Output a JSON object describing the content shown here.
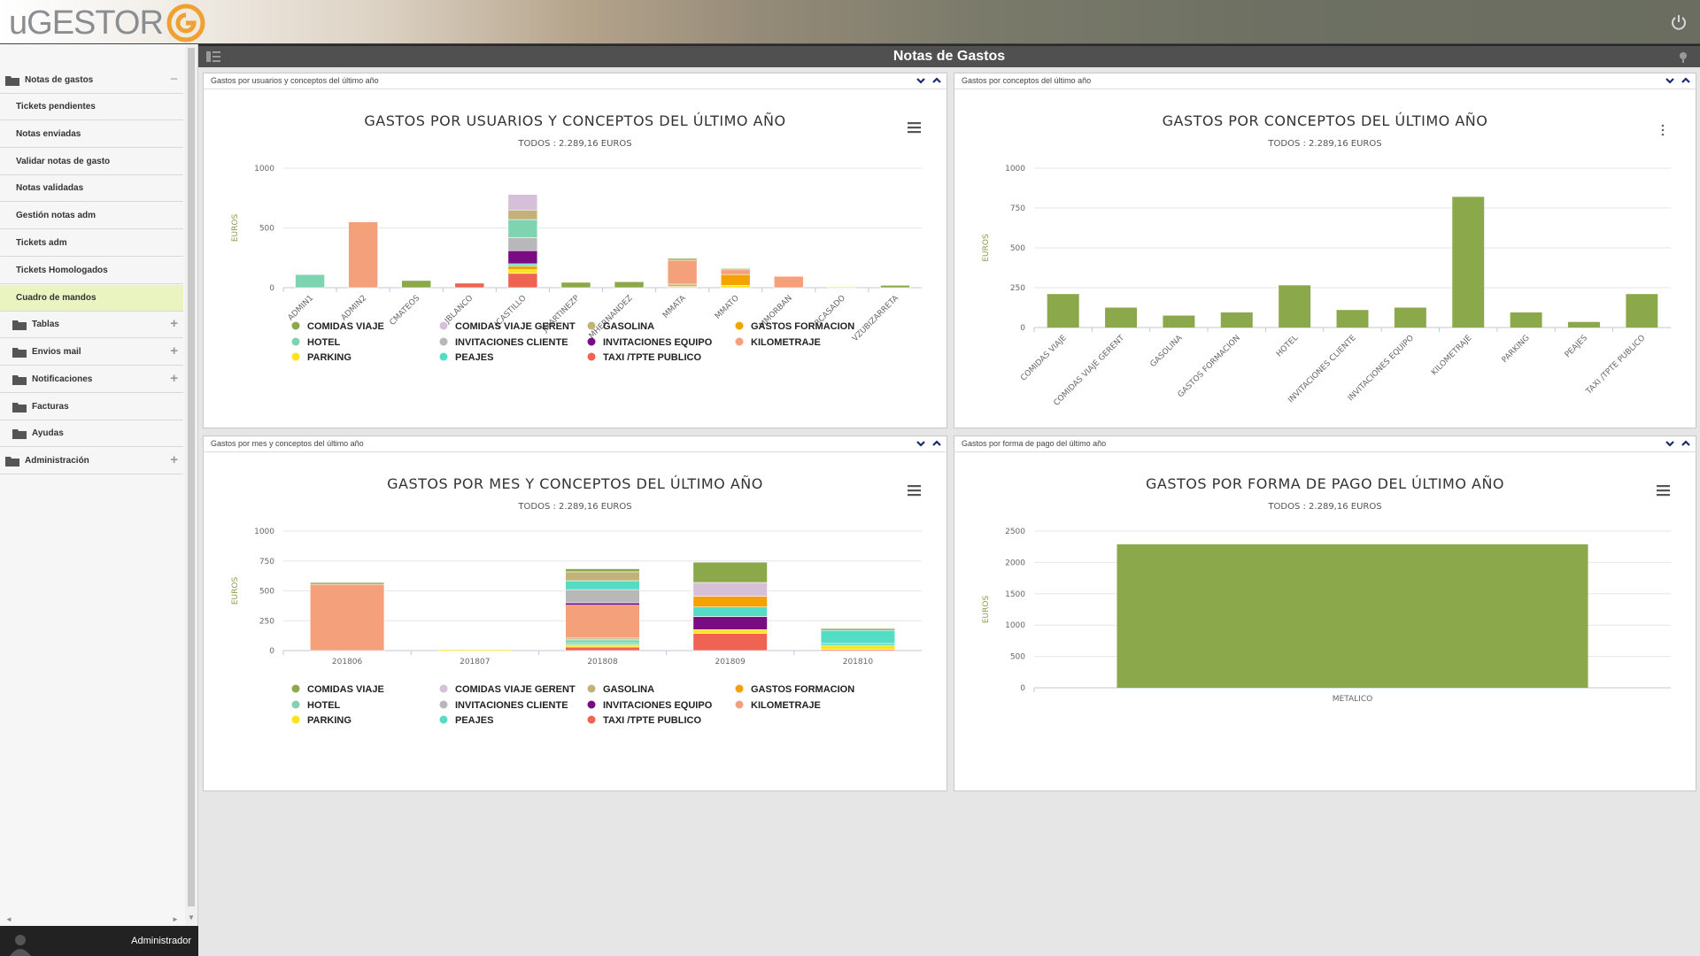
{
  "app": {
    "logo_text": "uGESTOR",
    "page_title": "Notas de Gastos",
    "user": "Administrador"
  },
  "sidebar": {
    "items": [
      {
        "label": "Notas de gastos",
        "type": "folder-root",
        "toggle": "−"
      },
      {
        "label": "Tickets pendientes",
        "type": "sub"
      },
      {
        "label": "Notas enviadas",
        "type": "sub"
      },
      {
        "label": "Validar notas de gasto",
        "type": "sub"
      },
      {
        "label": "Notas validadas",
        "type": "sub"
      },
      {
        "label": "Gestión notas adm",
        "type": "sub"
      },
      {
        "label": "Tickets adm",
        "type": "sub"
      },
      {
        "label": "Tickets Homologados",
        "type": "sub"
      },
      {
        "label": "Cuadro de mandos",
        "type": "sub",
        "active": true
      },
      {
        "label": "Tablas",
        "type": "folder",
        "toggle": "+"
      },
      {
        "label": "Envios mail",
        "type": "folder",
        "toggle": "+"
      },
      {
        "label": "Notificaciones",
        "type": "folder",
        "toggle": "+"
      },
      {
        "label": "Facturas",
        "type": "folder"
      },
      {
        "label": "Ayudas",
        "type": "folder"
      },
      {
        "label": "Administración",
        "type": "folder-root",
        "toggle": "+"
      }
    ]
  },
  "colors": {
    "COMIDAS VIAJE": "#8ba84a",
    "COMIDAS VIAJE GERENT": "#d6bfd8",
    "GASOLINA": "#c2b27a",
    "GASTOS FORMACION": "#f3a200",
    "HOTEL": "#7ed3b1",
    "INVITACIONES CLIENTE": "#b8b8b8",
    "INVITACIONES EQUIPO": "#7a0c82",
    "KILOMETRAJE": "#f4a07b",
    "PARKING": "#ffe21a",
    "PEAJES": "#55dcc5",
    "TAXI /TPTE PUBLICO": "#ee6352",
    "bar_single": "#8ba84a",
    "axis_label": "#8aa04a"
  },
  "panels": [
    {
      "header": "Gastos por usuarios y conceptos del último año",
      "chart_data": {
        "type": "bar",
        "stacked": true,
        "title": "GASTOS POR USUARIOS Y CONCEPTOS DEL ÚLTIMO AÑO",
        "subtitle": "TODOS : 2.289,16 EUROS",
        "ylabel": "EUROS",
        "ylim": [
          0,
          1000
        ],
        "yticks": [
          0,
          500,
          1000
        ],
        "categories": [
          "ADMIN1",
          "ADMIN2",
          "CMATEOS",
          "JBLANCO",
          "JCASTILLO",
          "JMARTINEZP",
          "MHERNANDEZ",
          "MMATA",
          "MMATO",
          "MMORBAN",
          "RCASADO",
          "VZUBIZARRETA"
        ],
        "series": [
          {
            "name": "TAXI /TPTE PUBLICO",
            "values": [
              0,
              0,
              0,
              38,
              120,
              0,
              0,
              0,
              0,
              0,
              0,
              0
            ]
          },
          {
            "name": "PARKING",
            "values": [
              0,
              0,
              0,
              0,
              30,
              0,
              0,
              10,
              20,
              0,
              8,
              0
            ]
          },
          {
            "name": "GASTOS FORMACION",
            "values": [
              0,
              0,
              0,
              0,
              30,
              0,
              0,
              0,
              90,
              0,
              0,
              0
            ]
          },
          {
            "name": "PEAJES",
            "values": [
              0,
              0,
              0,
              0,
              20,
              0,
              0,
              0,
              0,
              0,
              0,
              0
            ]
          },
          {
            "name": "INVITACIONES EQUIPO",
            "values": [
              0,
              0,
              0,
              0,
              110,
              0,
              0,
              0,
              0,
              0,
              0,
              0
            ]
          },
          {
            "name": "INVITACIONES CLIENTE",
            "values": [
              0,
              0,
              0,
              0,
              110,
              0,
              0,
              0,
              0,
              0,
              0,
              0
            ]
          },
          {
            "name": "HOTEL",
            "values": [
              110,
              0,
              0,
              0,
              150,
              0,
              0,
              0,
              0,
              0,
              0,
              0
            ]
          },
          {
            "name": "GASOLINA",
            "values": [
              0,
              0,
              0,
              0,
              80,
              0,
              0,
              20,
              0,
              0,
              0,
              0
            ]
          },
          {
            "name": "COMIDAS VIAJE GERENT",
            "values": [
              0,
              0,
              0,
              0,
              130,
              0,
              0,
              0,
              0,
              0,
              0,
              0
            ]
          },
          {
            "name": "KILOMETRAJE",
            "values": [
              0,
              550,
              0,
              0,
              0,
              0,
              0,
              200,
              40,
              95,
              0,
              0
            ]
          },
          {
            "name": "COMIDAS VIAJE",
            "values": [
              0,
              0,
              60,
              0,
              0,
              45,
              50,
              15,
              10,
              0,
              0,
              20
            ]
          }
        ],
        "legend": [
          "COMIDAS VIAJE",
          "COMIDAS VIAJE GERENT",
          "GASOLINA",
          "GASTOS FORMACION",
          "HOTEL",
          "INVITACIONES CLIENTE",
          "INVITACIONES EQUIPO",
          "KILOMETRAJE",
          "PARKING",
          "PEAJES",
          "TAXI /TPTE PUBLICO"
        ]
      }
    },
    {
      "header": "Gastos por conceptos del último año",
      "chart_data": {
        "type": "bar",
        "title": "GASTOS POR CONCEPTOS DEL ÚLTIMO AÑO",
        "subtitle": "TODOS : 2.289,16 EUROS",
        "ylabel": "EUROS",
        "ylim": [
          0,
          1000
        ],
        "yticks": [
          0,
          250,
          500,
          750,
          1000
        ],
        "categories": [
          "COMIDAS VIAJE",
          "COMIDAS VIAJE GERENT",
          "GASOLINA",
          "GASTOS FORMACION",
          "HOTEL",
          "INVITACIONES CLIENTE",
          "INVITACIONES EQUIPO",
          "KILOMETRAJE",
          "PARKING",
          "PEAJES",
          "TAXI /TPTE PUBLICO"
        ],
        "values": [
          210,
          125,
          75,
          95,
          265,
          110,
          125,
          820,
          95,
          35,
          210
        ]
      }
    },
    {
      "header": "Gastos por mes y conceptos del último año",
      "chart_data": {
        "type": "bar",
        "stacked": true,
        "title": "GASTOS POR MES Y CONCEPTOS DEL ÚLTIMO AÑO",
        "subtitle": "TODOS : 2.289,16 EUROS",
        "ylabel": "EUROS",
        "ylim": [
          0,
          1000
        ],
        "yticks": [
          0,
          250,
          500,
          750,
          1000
        ],
        "categories": [
          "201806",
          "201807",
          "201808",
          "201809",
          "201810"
        ],
        "series": [
          {
            "name": "TAXI /TPTE PUBLICO",
            "values": [
              0,
              0,
              30,
              145,
              10
            ]
          },
          {
            "name": "PARKING",
            "values": [
              0,
              10,
              20,
              30,
              30
            ]
          },
          {
            "name": "PEAJES",
            "values": [
              0,
              0,
              15,
              0,
              20
            ]
          },
          {
            "name": "HOTEL",
            "values": [
              0,
              0,
              25,
              0,
              0
            ]
          },
          {
            "name": "GASOLINA",
            "values": [
              0,
              0,
              15,
              0,
              0
            ]
          },
          {
            "name": "KILOMETRAJE",
            "values": [
              555,
              0,
              275,
              0,
              0
            ]
          },
          {
            "name": "INVITACIONES EQUIPO",
            "values": [
              0,
              0,
              20,
              110,
              0
            ]
          },
          {
            "name": "INVITACIONES CLIENTE",
            "values": [
              0,
              0,
              110,
              0,
              0
            ]
          },
          {
            "name": "PEAJES",
            "values": [
              0,
              0,
              75,
              80,
              110
            ]
          },
          {
            "name": "GASTOS FORMACION",
            "values": [
              0,
              0,
              0,
              90,
              0
            ]
          },
          {
            "name": "GASOLINA",
            "values": [
              0,
              0,
              75,
              0,
              0
            ]
          },
          {
            "name": "COMIDAS VIAJE GERENT",
            "values": [
              0,
              0,
              0,
              115,
              0
            ]
          },
          {
            "name": "COMIDAS VIAJE",
            "values": [
              15,
              0,
              25,
              170,
              15
            ]
          }
        ],
        "legend": [
          "COMIDAS VIAJE",
          "COMIDAS VIAJE GERENT",
          "GASOLINA",
          "GASTOS FORMACION",
          "HOTEL",
          "INVITACIONES CLIENTE",
          "INVITACIONES EQUIPO",
          "KILOMETRAJE",
          "PARKING",
          "PEAJES",
          "TAXI /TPTE PUBLICO"
        ]
      }
    },
    {
      "header": "Gastos por forma de pago del último año",
      "chart_data": {
        "type": "bar",
        "title": "GASTOS POR FORMA DE PAGO DEL ÚLTIMO AÑO",
        "subtitle": "TODOS : 2.289,16 EUROS",
        "ylabel": "EUROS",
        "ylim": [
          0,
          2500
        ],
        "yticks": [
          0,
          500,
          1000,
          1500,
          2000,
          2500
        ],
        "categories": [
          "METALICO"
        ],
        "values": [
          2289.16
        ]
      }
    }
  ]
}
